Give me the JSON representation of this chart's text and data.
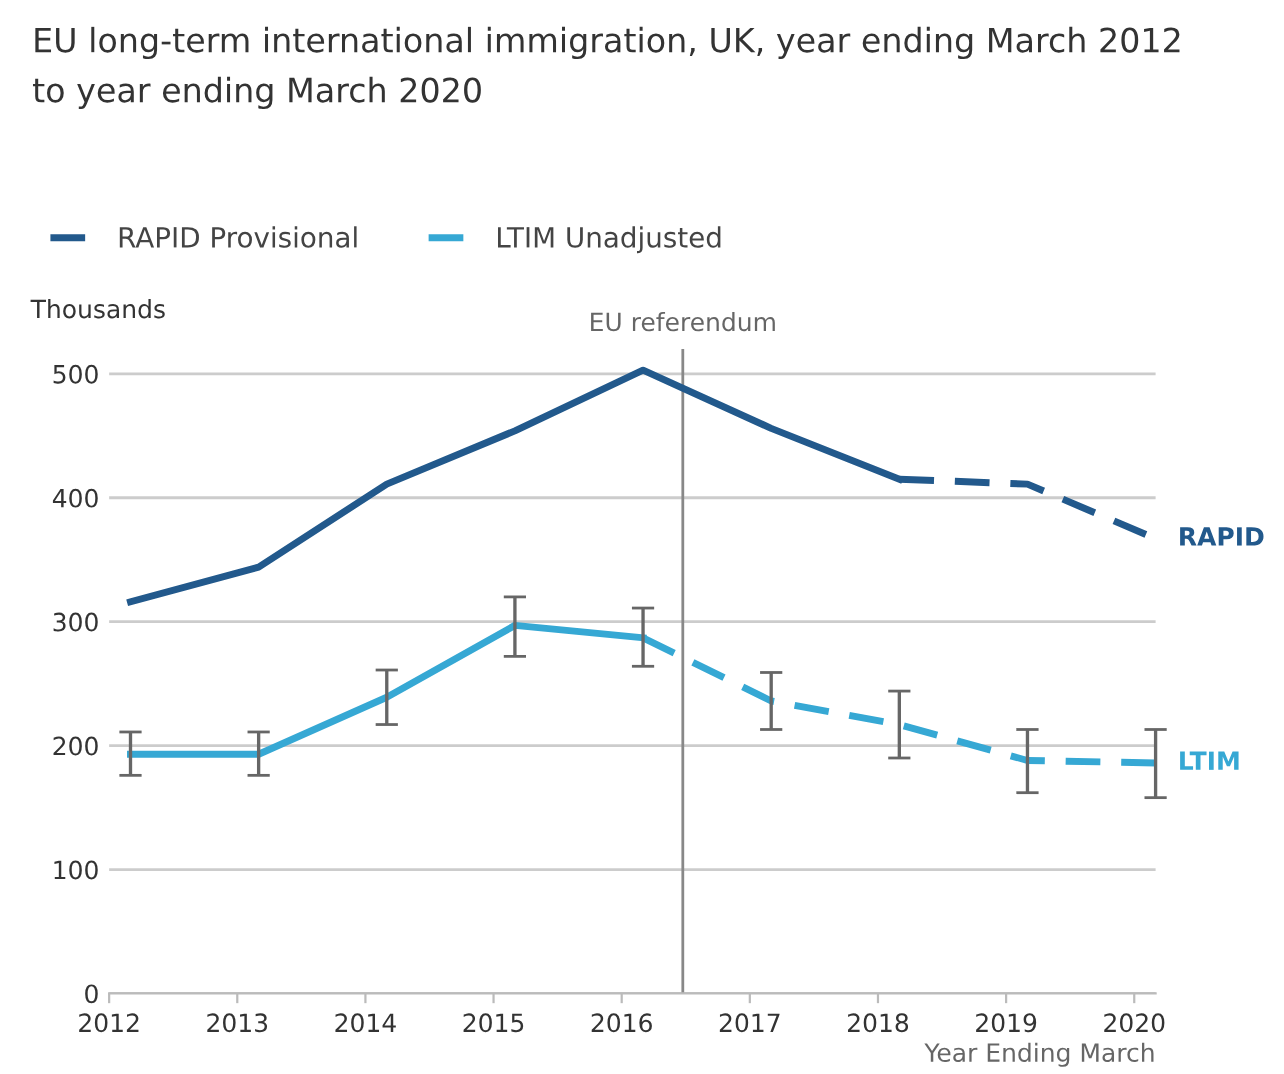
{
  "chart_data": {
    "type": "line",
    "title": "EU long-term international immigration, UK, year ending March 2012\nto year ending March 2020",
    "xlabel": "Year Ending March",
    "ylabel": "Thousands",
    "x": [
      "2012-03",
      "2013-03",
      "2014-03",
      "2015-03",
      "2016-03",
      "2017-03",
      "2018-03",
      "2019-03",
      "2020-03"
    ],
    "series": [
      {
        "color": "#22598c",
        "line_style": "solid",
        "values": [
          316,
          344,
          411,
          454,
          503,
          456,
          415,
          null,
          null
        ]
      },
      {
        "name": "RAPID Provisional",
        "color": "#22598c",
        "line_style": "dashed",
        "values": [
          null,
          null,
          null,
          null,
          null,
          null,
          415,
          411,
          367
        ]
      },
      {
        "color": "#36a8d4",
        "line_style": "solid",
        "values": [
          193,
          193,
          239,
          297,
          287,
          null,
          null,
          null,
          null
        ],
        "errors": [
          [
            176,
            211
          ],
          [
            176,
            211
          ],
          [
            217,
            261
          ],
          [
            272,
            320
          ],
          [
            264,
            311
          ],
          null,
          null,
          null,
          null
        ]
      },
      {
        "name": "LTIM Unadjusted",
        "color": "#36a8d4",
        "line_style": "dashed",
        "values": [
          null,
          null,
          null,
          null,
          287,
          236,
          217,
          188,
          186
        ],
        "errors": [
          null,
          null,
          null,
          null,
          null,
          [
            213,
            259
          ],
          [
            190,
            244
          ],
          [
            162,
            213
          ],
          [
            158,
            213
          ]
        ]
      }
    ],
    "annotations": [
      {
        "text": "RAPID",
        "x": "2020-03",
        "y": 367
      },
      {
        "text": "LTIM",
        "x": "2020-03",
        "y": 186
      }
    ],
    "ref_lines": [
      {
        "axis": "x",
        "value": "2016-06-23",
        "label": "EU referendum",
        "color": "#888888"
      }
    ],
    "xlim": [
      "2012",
      "2020-03"
    ],
    "xticks": [
      {
        "value": "2012",
        "label": "2012"
      },
      {
        "value": "2013",
        "label": "2013"
      },
      {
        "value": "2014",
        "label": "2014"
      },
      {
        "value": "2015",
        "label": "2015"
      },
      {
        "value": "2016",
        "label": "2016"
      },
      {
        "value": "2017",
        "label": "2017"
      },
      {
        "value": "2018",
        "label": "2018"
      },
      {
        "value": "2019",
        "label": "2019"
      },
      {
        "value": "2020",
        "label": "2020"
      }
    ],
    "ylim": [
      0,
      520
    ],
    "yticks": [
      0,
      100,
      200,
      300,
      400,
      500
    ],
    "grid": "y",
    "legend": "top left",
    "marker": "none"
  }
}
